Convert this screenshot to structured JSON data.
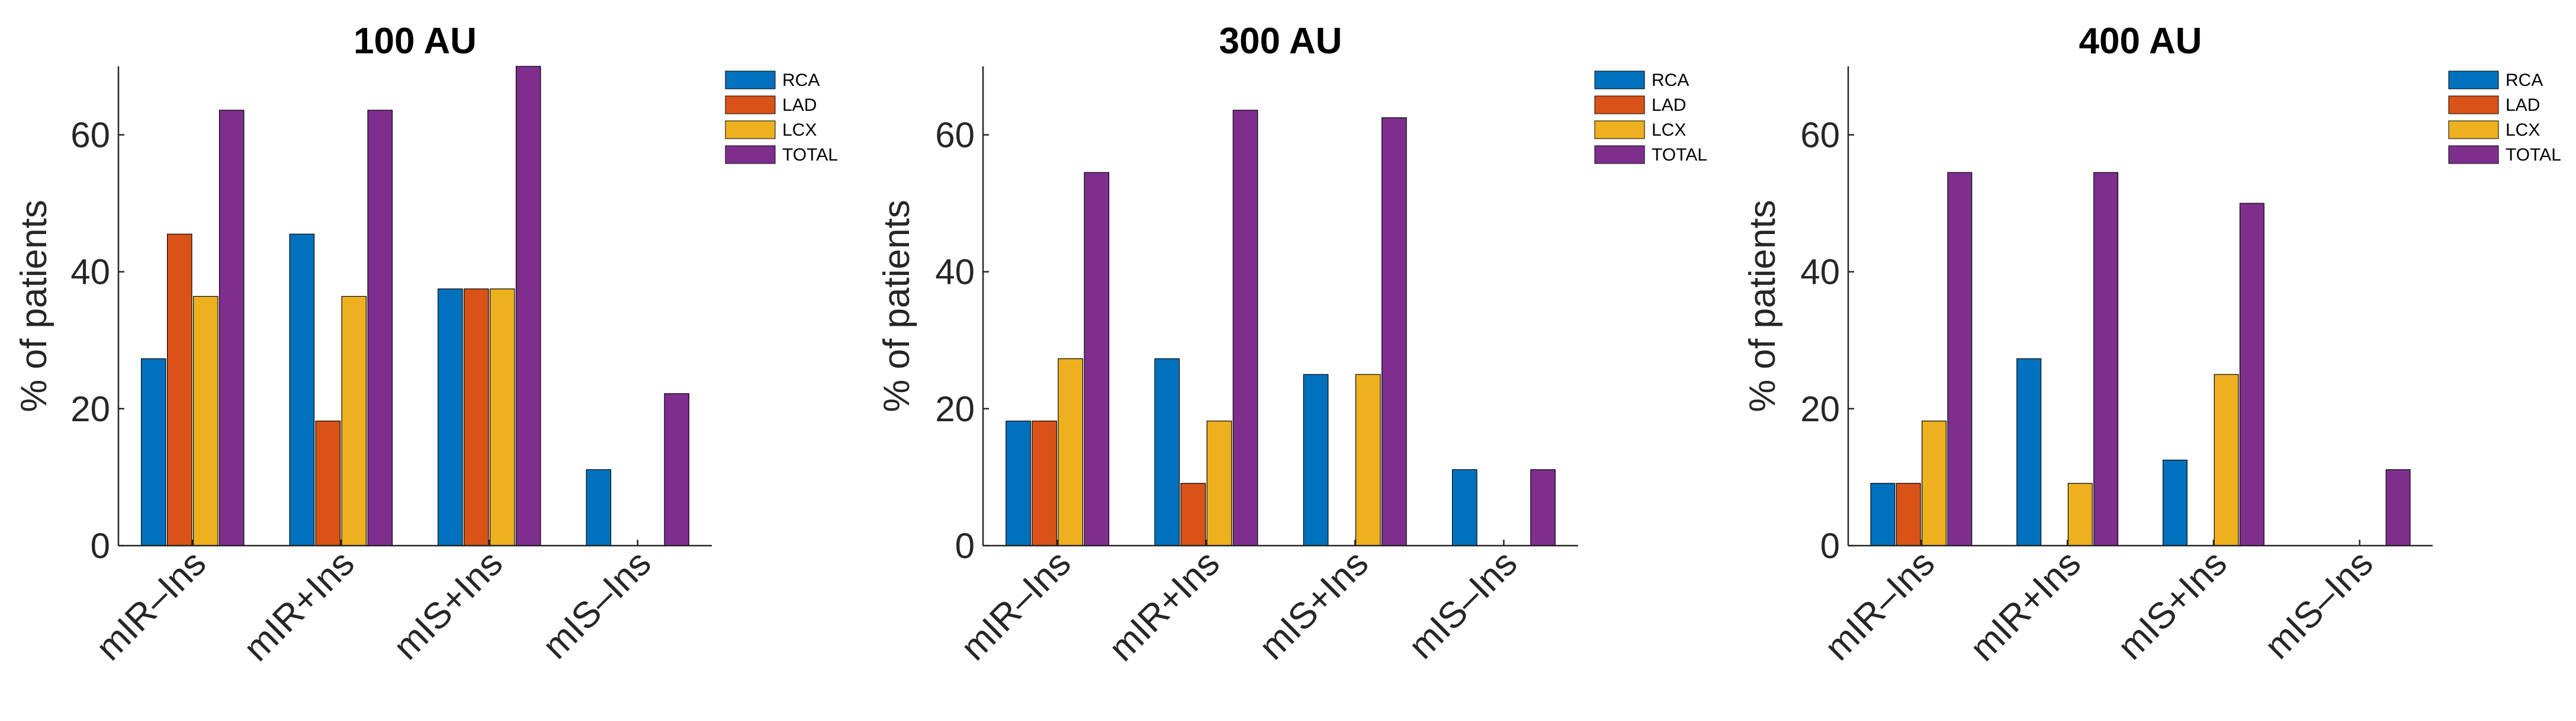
{
  "colors": {
    "RCA": "#0072BD",
    "LAD": "#D95319",
    "LCX": "#EDB120",
    "TOTAL": "#7E2F8E",
    "axis": "#262626"
  },
  "chart_data": [
    {
      "type": "bar",
      "title": "100 AU",
      "ylabel": "% of patients",
      "xlabel": "",
      "categories": [
        "mIR–Ins",
        "mIR+Ins",
        "mIS+Ins",
        "mIS–Ins"
      ],
      "ylim": [
        0,
        70
      ],
      "yticks": [
        0,
        20,
        40,
        60
      ],
      "legend_position": "top-right",
      "grid": false,
      "series": [
        {
          "name": "RCA",
          "values": [
            27.3,
            45.5,
            37.5,
            11.1
          ]
        },
        {
          "name": "LAD",
          "values": [
            45.5,
            18.2,
            37.5,
            0
          ]
        },
        {
          "name": "LCX",
          "values": [
            36.4,
            36.4,
            37.5,
            0
          ]
        },
        {
          "name": "TOTAL",
          "values": [
            63.6,
            63.6,
            70.0,
            22.2
          ]
        }
      ]
    },
    {
      "type": "bar",
      "title": "300 AU",
      "ylabel": "% of patients",
      "xlabel": "",
      "categories": [
        "mIR–Ins",
        "mIR+Ins",
        "mIS+Ins",
        "mIS–Ins"
      ],
      "ylim": [
        0,
        70
      ],
      "yticks": [
        0,
        20,
        40,
        60
      ],
      "legend_position": "top-right",
      "grid": false,
      "series": [
        {
          "name": "RCA",
          "values": [
            18.2,
            27.3,
            25.0,
            11.1
          ]
        },
        {
          "name": "LAD",
          "values": [
            18.2,
            9.1,
            0,
            0
          ]
        },
        {
          "name": "LCX",
          "values": [
            27.3,
            18.2,
            25.0,
            0
          ]
        },
        {
          "name": "TOTAL",
          "values": [
            54.5,
            63.6,
            62.5,
            11.1
          ]
        }
      ]
    },
    {
      "type": "bar",
      "title": "400 AU",
      "ylabel": "% of patients",
      "xlabel": "",
      "categories": [
        "mIR–Ins",
        "mIR+Ins",
        "mIS+Ins",
        "mIS–Ins"
      ],
      "ylim": [
        0,
        70
      ],
      "yticks": [
        0,
        20,
        40,
        60
      ],
      "legend_position": "top-right",
      "grid": false,
      "series": [
        {
          "name": "RCA",
          "values": [
            9.1,
            27.3,
            12.5,
            0
          ]
        },
        {
          "name": "LAD",
          "values": [
            9.1,
            0,
            0,
            0
          ]
        },
        {
          "name": "LCX",
          "values": [
            18.2,
            9.1,
            25.0,
            0
          ]
        },
        {
          "name": "TOTAL",
          "values": [
            54.5,
            54.5,
            50.0,
            11.1
          ]
        }
      ]
    }
  ]
}
